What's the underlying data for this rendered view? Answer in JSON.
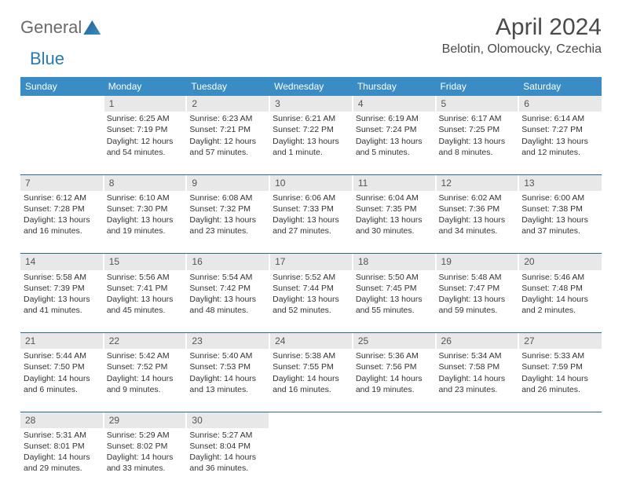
{
  "brand": {
    "part1": "General",
    "part2": "Blue"
  },
  "title": "April 2024",
  "location": "Belotin, Olomoucky, Czechia",
  "colors": {
    "header_bg": "#3a8cc4",
    "header_text": "#ffffff",
    "daynum_bg": "#e8e8e8",
    "sep": "#2a6a9a",
    "text": "#333333"
  },
  "weekdays": [
    "Sunday",
    "Monday",
    "Tuesday",
    "Wednesday",
    "Thursday",
    "Friday",
    "Saturday"
  ],
  "weeks": [
    {
      "nums": [
        "",
        "1",
        "2",
        "3",
        "4",
        "5",
        "6"
      ],
      "cells": [
        null,
        {
          "sr": "Sunrise: 6:25 AM",
          "ss": "Sunset: 7:19 PM",
          "d1": "Daylight: 12 hours",
          "d2": "and 54 minutes."
        },
        {
          "sr": "Sunrise: 6:23 AM",
          "ss": "Sunset: 7:21 PM",
          "d1": "Daylight: 12 hours",
          "d2": "and 57 minutes."
        },
        {
          "sr": "Sunrise: 6:21 AM",
          "ss": "Sunset: 7:22 PM",
          "d1": "Daylight: 13 hours",
          "d2": "and 1 minute."
        },
        {
          "sr": "Sunrise: 6:19 AM",
          "ss": "Sunset: 7:24 PM",
          "d1": "Daylight: 13 hours",
          "d2": "and 5 minutes."
        },
        {
          "sr": "Sunrise: 6:17 AM",
          "ss": "Sunset: 7:25 PM",
          "d1": "Daylight: 13 hours",
          "d2": "and 8 minutes."
        },
        {
          "sr": "Sunrise: 6:14 AM",
          "ss": "Sunset: 7:27 PM",
          "d1": "Daylight: 13 hours",
          "d2": "and 12 minutes."
        }
      ]
    },
    {
      "nums": [
        "7",
        "8",
        "9",
        "10",
        "11",
        "12",
        "13"
      ],
      "cells": [
        {
          "sr": "Sunrise: 6:12 AM",
          "ss": "Sunset: 7:28 PM",
          "d1": "Daylight: 13 hours",
          "d2": "and 16 minutes."
        },
        {
          "sr": "Sunrise: 6:10 AM",
          "ss": "Sunset: 7:30 PM",
          "d1": "Daylight: 13 hours",
          "d2": "and 19 minutes."
        },
        {
          "sr": "Sunrise: 6:08 AM",
          "ss": "Sunset: 7:32 PM",
          "d1": "Daylight: 13 hours",
          "d2": "and 23 minutes."
        },
        {
          "sr": "Sunrise: 6:06 AM",
          "ss": "Sunset: 7:33 PM",
          "d1": "Daylight: 13 hours",
          "d2": "and 27 minutes."
        },
        {
          "sr": "Sunrise: 6:04 AM",
          "ss": "Sunset: 7:35 PM",
          "d1": "Daylight: 13 hours",
          "d2": "and 30 minutes."
        },
        {
          "sr": "Sunrise: 6:02 AM",
          "ss": "Sunset: 7:36 PM",
          "d1": "Daylight: 13 hours",
          "d2": "and 34 minutes."
        },
        {
          "sr": "Sunrise: 6:00 AM",
          "ss": "Sunset: 7:38 PM",
          "d1": "Daylight: 13 hours",
          "d2": "and 37 minutes."
        }
      ]
    },
    {
      "nums": [
        "14",
        "15",
        "16",
        "17",
        "18",
        "19",
        "20"
      ],
      "cells": [
        {
          "sr": "Sunrise: 5:58 AM",
          "ss": "Sunset: 7:39 PM",
          "d1": "Daylight: 13 hours",
          "d2": "and 41 minutes."
        },
        {
          "sr": "Sunrise: 5:56 AM",
          "ss": "Sunset: 7:41 PM",
          "d1": "Daylight: 13 hours",
          "d2": "and 45 minutes."
        },
        {
          "sr": "Sunrise: 5:54 AM",
          "ss": "Sunset: 7:42 PM",
          "d1": "Daylight: 13 hours",
          "d2": "and 48 minutes."
        },
        {
          "sr": "Sunrise: 5:52 AM",
          "ss": "Sunset: 7:44 PM",
          "d1": "Daylight: 13 hours",
          "d2": "and 52 minutes."
        },
        {
          "sr": "Sunrise: 5:50 AM",
          "ss": "Sunset: 7:45 PM",
          "d1": "Daylight: 13 hours",
          "d2": "and 55 minutes."
        },
        {
          "sr": "Sunrise: 5:48 AM",
          "ss": "Sunset: 7:47 PM",
          "d1": "Daylight: 13 hours",
          "d2": "and 59 minutes."
        },
        {
          "sr": "Sunrise: 5:46 AM",
          "ss": "Sunset: 7:48 PM",
          "d1": "Daylight: 14 hours",
          "d2": "and 2 minutes."
        }
      ]
    },
    {
      "nums": [
        "21",
        "22",
        "23",
        "24",
        "25",
        "26",
        "27"
      ],
      "cells": [
        {
          "sr": "Sunrise: 5:44 AM",
          "ss": "Sunset: 7:50 PM",
          "d1": "Daylight: 14 hours",
          "d2": "and 6 minutes."
        },
        {
          "sr": "Sunrise: 5:42 AM",
          "ss": "Sunset: 7:52 PM",
          "d1": "Daylight: 14 hours",
          "d2": "and 9 minutes."
        },
        {
          "sr": "Sunrise: 5:40 AM",
          "ss": "Sunset: 7:53 PM",
          "d1": "Daylight: 14 hours",
          "d2": "and 13 minutes."
        },
        {
          "sr": "Sunrise: 5:38 AM",
          "ss": "Sunset: 7:55 PM",
          "d1": "Daylight: 14 hours",
          "d2": "and 16 minutes."
        },
        {
          "sr": "Sunrise: 5:36 AM",
          "ss": "Sunset: 7:56 PM",
          "d1": "Daylight: 14 hours",
          "d2": "and 19 minutes."
        },
        {
          "sr": "Sunrise: 5:34 AM",
          "ss": "Sunset: 7:58 PM",
          "d1": "Daylight: 14 hours",
          "d2": "and 23 minutes."
        },
        {
          "sr": "Sunrise: 5:33 AM",
          "ss": "Sunset: 7:59 PM",
          "d1": "Daylight: 14 hours",
          "d2": "and 26 minutes."
        }
      ]
    },
    {
      "nums": [
        "28",
        "29",
        "30",
        "",
        "",
        "",
        ""
      ],
      "cells": [
        {
          "sr": "Sunrise: 5:31 AM",
          "ss": "Sunset: 8:01 PM",
          "d1": "Daylight: 14 hours",
          "d2": "and 29 minutes."
        },
        {
          "sr": "Sunrise: 5:29 AM",
          "ss": "Sunset: 8:02 PM",
          "d1": "Daylight: 14 hours",
          "d2": "and 33 minutes."
        },
        {
          "sr": "Sunrise: 5:27 AM",
          "ss": "Sunset: 8:04 PM",
          "d1": "Daylight: 14 hours",
          "d2": "and 36 minutes."
        },
        null,
        null,
        null,
        null
      ]
    }
  ]
}
